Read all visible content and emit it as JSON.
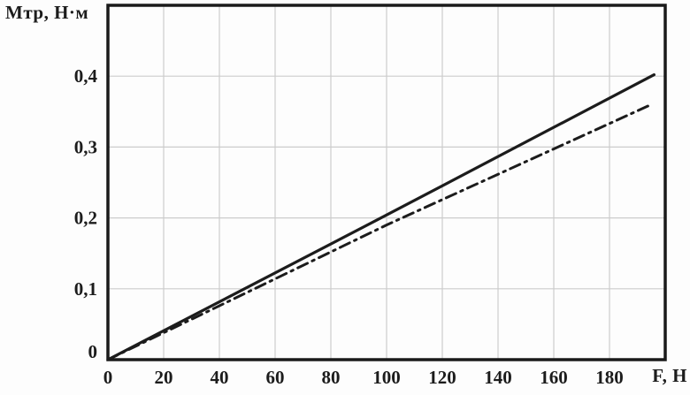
{
  "chart_data": {
    "type": "line",
    "title": "",
    "x_axis_label": "F, Н",
    "y_axis_label": "Мтр, Н·м",
    "xlim": [
      0,
      200
    ],
    "ylim": [
      0,
      0.5
    ],
    "grid": true,
    "legend": "none",
    "background": "#fdfdfd",
    "grid_color": "#cccccc",
    "axis_color": "#1a1a1a",
    "x_ticks": [
      {
        "v": 0,
        "label": "0"
      },
      {
        "v": 20,
        "label": "20"
      },
      {
        "v": 40,
        "label": "40"
      },
      {
        "v": 60,
        "label": "60"
      },
      {
        "v": 80,
        "label": "80"
      },
      {
        "v": 100,
        "label": "100"
      },
      {
        "v": 120,
        "label": "120"
      },
      {
        "v": 140,
        "label": "140"
      },
      {
        "v": 160,
        "label": "160"
      },
      {
        "v": 180,
        "label": "180"
      }
    ],
    "y_ticks": [
      {
        "v": 0,
        "label": "0"
      },
      {
        "v": 0.1,
        "label": "0,1"
      },
      {
        "v": 0.2,
        "label": "0,2"
      },
      {
        "v": 0.3,
        "label": "0,3"
      },
      {
        "v": 0.4,
        "label": "0,4"
      }
    ],
    "series": [
      {
        "name": "solid-line",
        "style": "solid",
        "color": "#1c1c1c",
        "width": 3.2,
        "points": [
          [
            0,
            0
          ],
          [
            98,
            0.2
          ],
          [
            196,
            0.402
          ]
        ]
      },
      {
        "name": "dash-dot-line",
        "style": "dash-dot",
        "color": "#1c1c1c",
        "width": 3,
        "points": [
          [
            0,
            0
          ],
          [
            100,
            0.19
          ],
          [
            195,
            0.36
          ]
        ]
      }
    ]
  }
}
